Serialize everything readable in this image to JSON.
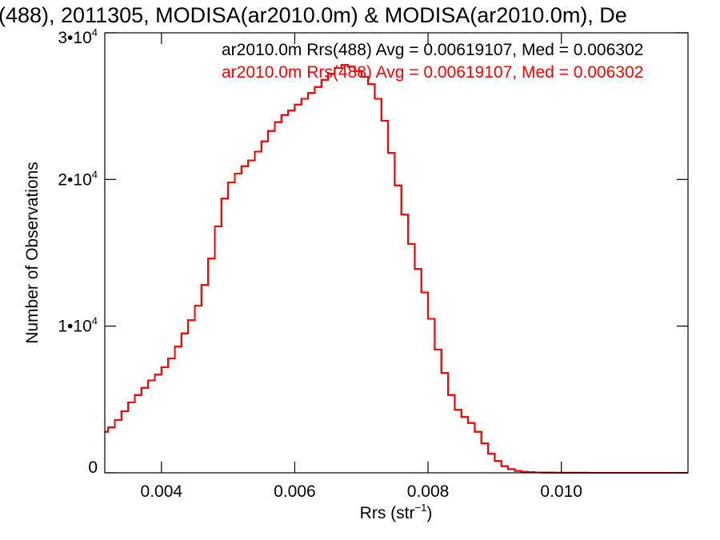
{
  "chart_data": {
    "type": "line",
    "title": "(488), 2011305, MODISA(ar2010.0m) & MODISA(ar2010.0m), De",
    "xlabel": "Rrs (str",
    "xlabel_sup": "−1",
    "xlabel_close": ")",
    "ylabel": "Number of Observations",
    "xlim": [
      0.00315,
      0.0119
    ],
    "ylim": [
      0,
      30000
    ],
    "x_ticks": [
      0.004,
      0.006,
      0.008,
      0.01
    ],
    "x_tick_labels": [
      "0.004",
      "0.006",
      "0.008",
      "0.010"
    ],
    "y_ticks": [
      0,
      10000,
      20000,
      30000
    ],
    "y_tick_labels": [
      {
        "base": "0",
        "exp": ""
      },
      {
        "base": "1•10",
        "exp": "4"
      },
      {
        "base": "2•10",
        "exp": "4"
      },
      {
        "base": "3•10",
        "exp": "4"
      }
    ],
    "grid": false,
    "legend_position": "top-right",
    "series": [
      {
        "name": "ar2010.0m Rrs(488) Avg = 0.00619107, Med = 0.006302",
        "color": "#000000",
        "step": true,
        "x": [
          0.00315,
          0.0032,
          0.0033,
          0.0034,
          0.0035,
          0.0036,
          0.0037,
          0.0038,
          0.0039,
          0.004,
          0.0041,
          0.0042,
          0.0043,
          0.0044,
          0.0045,
          0.0046,
          0.0047,
          0.0048,
          0.0049,
          0.005,
          0.0051,
          0.0052,
          0.0053,
          0.0054,
          0.0055,
          0.0056,
          0.0057,
          0.0058,
          0.0059,
          0.006,
          0.0061,
          0.0062,
          0.0063,
          0.0064,
          0.0065,
          0.0066,
          0.0067,
          0.0068,
          0.0069,
          0.007,
          0.0071,
          0.0072,
          0.0073,
          0.0074,
          0.0075,
          0.0076,
          0.0077,
          0.0078,
          0.0079,
          0.008,
          0.0081,
          0.0082,
          0.0083,
          0.0084,
          0.0085,
          0.0086,
          0.0087,
          0.0088,
          0.0089,
          0.009,
          0.0091,
          0.0092,
          0.0093,
          0.0094,
          0.0095,
          0.0096,
          0.0097,
          0.0098,
          0.0099,
          0.01,
          0.0102,
          0.0104,
          0.0106,
          0.0108,
          0.011,
          0.0112,
          0.0114,
          0.0116,
          0.0118
        ],
        "y": [
          2800,
          3100,
          3600,
          4200,
          4800,
          5300,
          5800,
          6300,
          6700,
          7200,
          7800,
          8600,
          9500,
          10400,
          11400,
          12800,
          14600,
          16800,
          18700,
          19800,
          20400,
          20900,
          21300,
          21900,
          22600,
          23300,
          23900,
          24400,
          24700,
          25100,
          25500,
          25900,
          26300,
          26800,
          27200,
          27600,
          27800,
          27700,
          27400,
          27000,
          26500,
          25500,
          24000,
          21800,
          19600,
          17600,
          15600,
          13900,
          12300,
          10500,
          8400,
          6800,
          5300,
          4300,
          3800,
          3400,
          2800,
          2000,
          1300,
          800,
          450,
          250,
          130,
          70,
          40,
          25,
          15,
          10,
          6,
          4,
          3,
          2,
          2,
          1,
          1,
          1,
          1,
          1,
          1
        ]
      },
      {
        "name": "ar2010.0m Rrs(488) Avg = 0.00619107, Med = 0.006302",
        "color": "#ff0000",
        "step": true,
        "x": [
          0.00315,
          0.0032,
          0.0033,
          0.0034,
          0.0035,
          0.0036,
          0.0037,
          0.0038,
          0.0039,
          0.004,
          0.0041,
          0.0042,
          0.0043,
          0.0044,
          0.0045,
          0.0046,
          0.0047,
          0.0048,
          0.0049,
          0.005,
          0.0051,
          0.0052,
          0.0053,
          0.0054,
          0.0055,
          0.0056,
          0.0057,
          0.0058,
          0.0059,
          0.006,
          0.0061,
          0.0062,
          0.0063,
          0.0064,
          0.0065,
          0.0066,
          0.0067,
          0.0068,
          0.0069,
          0.007,
          0.0071,
          0.0072,
          0.0073,
          0.0074,
          0.0075,
          0.0076,
          0.0077,
          0.0078,
          0.0079,
          0.008,
          0.0081,
          0.0082,
          0.0083,
          0.0084,
          0.0085,
          0.0086,
          0.0087,
          0.0088,
          0.0089,
          0.009,
          0.0091,
          0.0092,
          0.0093,
          0.0094,
          0.0095,
          0.0096,
          0.0097,
          0.0098,
          0.0099,
          0.01,
          0.0102,
          0.0104,
          0.0106,
          0.0108,
          0.011,
          0.0112,
          0.0114,
          0.0116,
          0.0118
        ],
        "y": [
          2800,
          3100,
          3600,
          4200,
          4800,
          5300,
          5800,
          6300,
          6700,
          7200,
          7800,
          8600,
          9500,
          10400,
          11400,
          12800,
          14600,
          16800,
          18700,
          19800,
          20400,
          20900,
          21300,
          21900,
          22600,
          23300,
          23900,
          24400,
          24700,
          25100,
          25500,
          25900,
          26300,
          26800,
          27200,
          27600,
          27800,
          27700,
          27400,
          27000,
          26500,
          25500,
          24000,
          21800,
          19600,
          17600,
          15600,
          13900,
          12300,
          10500,
          8400,
          6800,
          5300,
          4300,
          3800,
          3400,
          2800,
          2000,
          1300,
          800,
          450,
          250,
          130,
          70,
          40,
          25,
          15,
          10,
          6,
          4,
          3,
          2,
          2,
          1,
          1,
          1,
          1,
          1,
          1
        ]
      }
    ]
  }
}
